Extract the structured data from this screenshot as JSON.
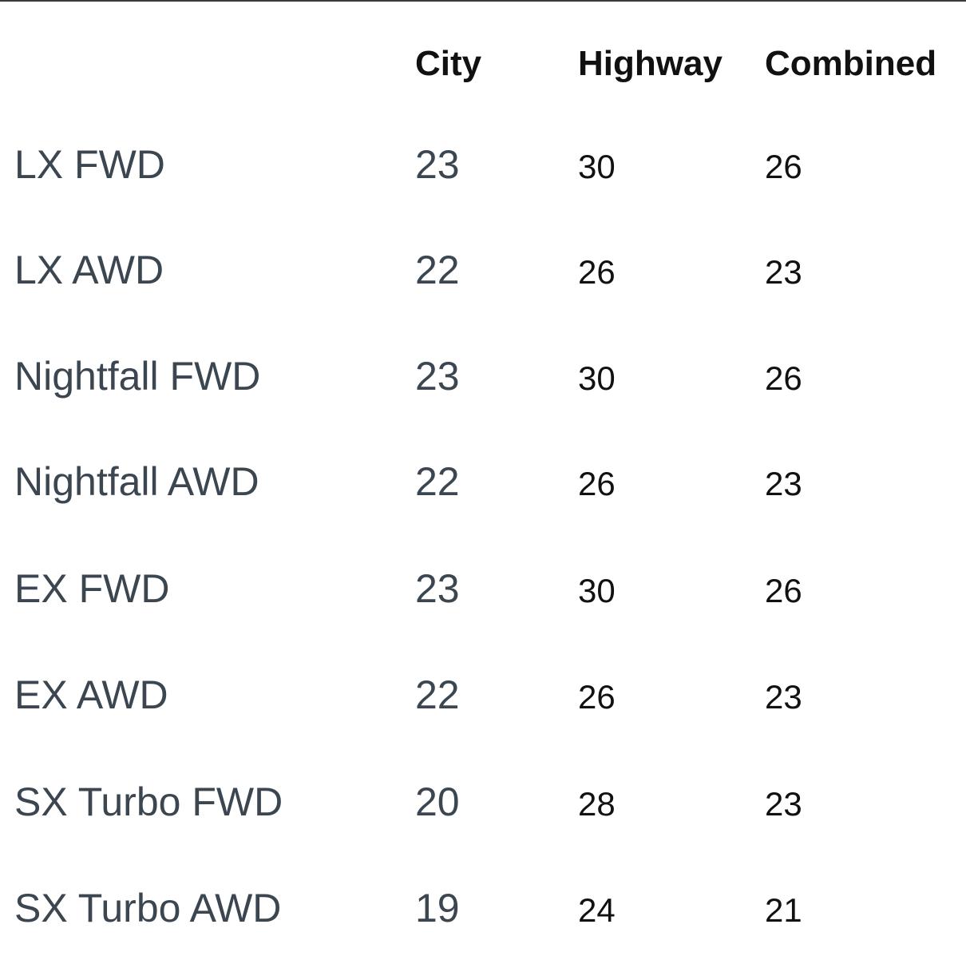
{
  "columns": {
    "city": "City",
    "highway": "Highway",
    "combined": "Combined"
  },
  "rows": [
    {
      "trim": "LX FWD",
      "city": "23",
      "highway": "30",
      "combined": "26"
    },
    {
      "trim": "LX AWD",
      "city": "22",
      "highway": "26",
      "combined": "23"
    },
    {
      "trim": "Nightfall FWD",
      "city": "23",
      "highway": "30",
      "combined": "26"
    },
    {
      "trim": "Nightfall AWD",
      "city": "22",
      "highway": "26",
      "combined": "23"
    },
    {
      "trim": "EX FWD",
      "city": "23",
      "highway": "30",
      "combined": "26"
    },
    {
      "trim": "EX AWD",
      "city": "22",
      "highway": "26",
      "combined": "23"
    },
    {
      "trim": "SX Turbo FWD",
      "city": "20",
      "highway": "28",
      "combined": "23"
    },
    {
      "trim": "SX Turbo AWD",
      "city": "19",
      "highway": "24",
      "combined": "21"
    }
  ]
}
